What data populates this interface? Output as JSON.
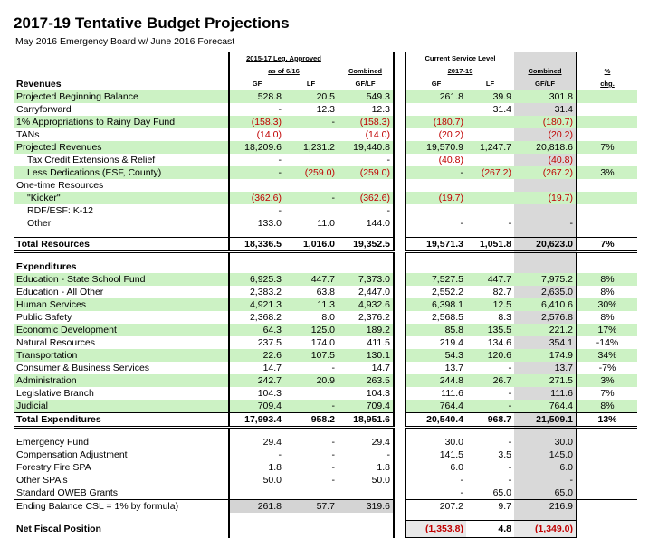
{
  "title": "2017-19 Tentative Budget Projections",
  "subtitle": "May 2016 Emergency Board w/ June 2016 Forecast",
  "headers": {
    "group1_line1": "2015-17 Leg. Approved",
    "group1_line2": "as of 6/16",
    "group2_line1": "Current Service Level",
    "group2_line2": "2017-19",
    "combined_top": "Combined",
    "pct_top": "%",
    "revenues": "Revenues",
    "gf": "GF",
    "lf": "LF",
    "gflf": "GF/LF",
    "chg": "chg."
  },
  "revenue_rows": [
    {
      "label": "Projected Beginning Balance",
      "green": true,
      "v": [
        "528.8",
        "20.5",
        "549.3",
        "261.8",
        "39.9",
        "301.8",
        ""
      ]
    },
    {
      "label": "Carryforward",
      "green": false,
      "v": [
        "-",
        "12.3",
        "12.3",
        "",
        "31.4",
        "31.4",
        ""
      ]
    },
    {
      "label": "1% Appropriations to Rainy Day Fund",
      "green": true,
      "v": [
        "(158.3)",
        "-",
        "(158.3)",
        "(180.7)",
        "",
        "(180.7)",
        ""
      ]
    },
    {
      "label": "TANs",
      "green": false,
      "v": [
        "(14.0)",
        "",
        "(14.0)",
        "(20.2)",
        "",
        "(20.2)",
        ""
      ]
    },
    {
      "label": "Projected Revenues",
      "green": true,
      "v": [
        "18,209.6",
        "1,231.2",
        "19,440.8",
        "19,570.9",
        "1,247.7",
        "20,818.6",
        "7%"
      ]
    },
    {
      "label": "Tax Credit Extensions & Relief",
      "green": false,
      "indent": true,
      "v": [
        "-",
        "",
        "-",
        "(40.8)",
        "",
        "(40.8)",
        ""
      ]
    },
    {
      "label": "Less Dedications (ESF, County)",
      "green": true,
      "indent": true,
      "v": [
        "-",
        "(259.0)",
        "(259.0)",
        "-",
        "(267.2)",
        "(267.2)",
        "3%"
      ]
    },
    {
      "label": "One-time Resources",
      "green": false,
      "v": [
        "",
        "",
        "",
        "",
        "",
        "",
        ""
      ]
    },
    {
      "label": "\"Kicker\"",
      "green": true,
      "indent": true,
      "v": [
        "(362.6)",
        "-",
        "(362.6)",
        "(19.7)",
        "",
        "(19.7)",
        ""
      ]
    },
    {
      "label": "RDF/ESF: K-12",
      "green": false,
      "indent": true,
      "v": [
        "-",
        "",
        "-",
        "",
        "",
        "",
        ""
      ]
    },
    {
      "label": "Other",
      "green": false,
      "indent": true,
      "v": [
        "133.0",
        "11.0",
        "144.0",
        "-",
        "-",
        "-",
        ""
      ]
    }
  ],
  "total_resources": {
    "label": "Total Resources",
    "v": [
      "18,336.5",
      "1,016.0",
      "19,352.5",
      "19,571.3",
      "1,051.8",
      "20,623.0",
      "7%"
    ]
  },
  "expenditures_label": "Expenditures",
  "expenditure_rows": [
    {
      "label": "Education - State School Fund",
      "green": true,
      "v": [
        "6,925.3",
        "447.7",
        "7,373.0",
        "7,527.5",
        "447.7",
        "7,975.2",
        "8%"
      ]
    },
    {
      "label": "Education - All Other",
      "green": false,
      "v": [
        "2,383.2",
        "63.8",
        "2,447.0",
        "2,552.2",
        "82.7",
        "2,635.0",
        "8%"
      ]
    },
    {
      "label": "Human Services",
      "green": true,
      "v": [
        "4,921.3",
        "11.3",
        "4,932.6",
        "6,398.1",
        "12.5",
        "6,410.6",
        "30%"
      ]
    },
    {
      "label": "Public Safety",
      "green": false,
      "v": [
        "2,368.2",
        "8.0",
        "2,376.2",
        "2,568.5",
        "8.3",
        "2,576.8",
        "8%"
      ]
    },
    {
      "label": "Economic Development",
      "green": true,
      "v": [
        "64.3",
        "125.0",
        "189.2",
        "85.8",
        "135.5",
        "221.2",
        "17%"
      ]
    },
    {
      "label": "Natural Resources",
      "green": false,
      "v": [
        "237.5",
        "174.0",
        "411.5",
        "219.4",
        "134.6",
        "354.1",
        "-14%"
      ]
    },
    {
      "label": "Transportation",
      "green": true,
      "v": [
        "22.6",
        "107.5",
        "130.1",
        "54.3",
        "120.6",
        "174.9",
        "34%"
      ]
    },
    {
      "label": "Consumer & Business Services",
      "green": false,
      "v": [
        "14.7",
        "-",
        "14.7",
        "13.7",
        "-",
        "13.7",
        "-7%"
      ]
    },
    {
      "label": "Administration",
      "green": true,
      "v": [
        "242.7",
        "20.9",
        "263.5",
        "244.8",
        "26.7",
        "271.5",
        "3%"
      ]
    },
    {
      "label": "Legislative Branch",
      "green": false,
      "v": [
        "104.3",
        "",
        "104.3",
        "111.6",
        "-",
        "111.6",
        "7%"
      ]
    },
    {
      "label": "Judicial",
      "green": true,
      "v": [
        "709.4",
        "-",
        "709.4",
        "764.4",
        "-",
        "764.4",
        "8%"
      ]
    }
  ],
  "total_expenditures": {
    "label": "Total Expenditures",
    "v": [
      "17,993.4",
      "958.2",
      "18,951.6",
      "20,540.4",
      "968.7",
      "21,509.1",
      "13%"
    ]
  },
  "other_rows": [
    {
      "label": "Emergency Fund",
      "v": [
        "29.4",
        "-",
        "29.4",
        "30.0",
        "-",
        "30.0",
        ""
      ]
    },
    {
      "label": "Compensation Adjustment",
      "v": [
        "-",
        "-",
        "-",
        "141.5",
        "3.5",
        "145.0",
        ""
      ]
    },
    {
      "label": "Forestry Fire SPA",
      "v": [
        "1.8",
        "-",
        "1.8",
        "6.0",
        "-",
        "6.0",
        ""
      ]
    },
    {
      "label": "Other SPA's",
      "v": [
        "50.0",
        "-",
        "50.0",
        "-",
        "-",
        "-",
        ""
      ]
    },
    {
      "label": "Standard OWEB Grants",
      "v": [
        "",
        "",
        "",
        "-",
        "65.0",
        "65.0",
        ""
      ]
    },
    {
      "label": "Ending Balance CSL = 1% by formula)",
      "v": [
        "261.8",
        "57.7",
        "319.6",
        "207.2",
        "9.7",
        "216.9",
        ""
      ]
    }
  ],
  "net_fiscal": {
    "label": "Net Fiscal Position",
    "v": [
      "",
      "",
      "",
      "(1,353.8)",
      "4.8",
      "(1,349.0)",
      ""
    ]
  },
  "colors": {
    "green_band": "#ccf2c4",
    "negative": "#c00000",
    "gray_block": "#d4d4d4"
  }
}
